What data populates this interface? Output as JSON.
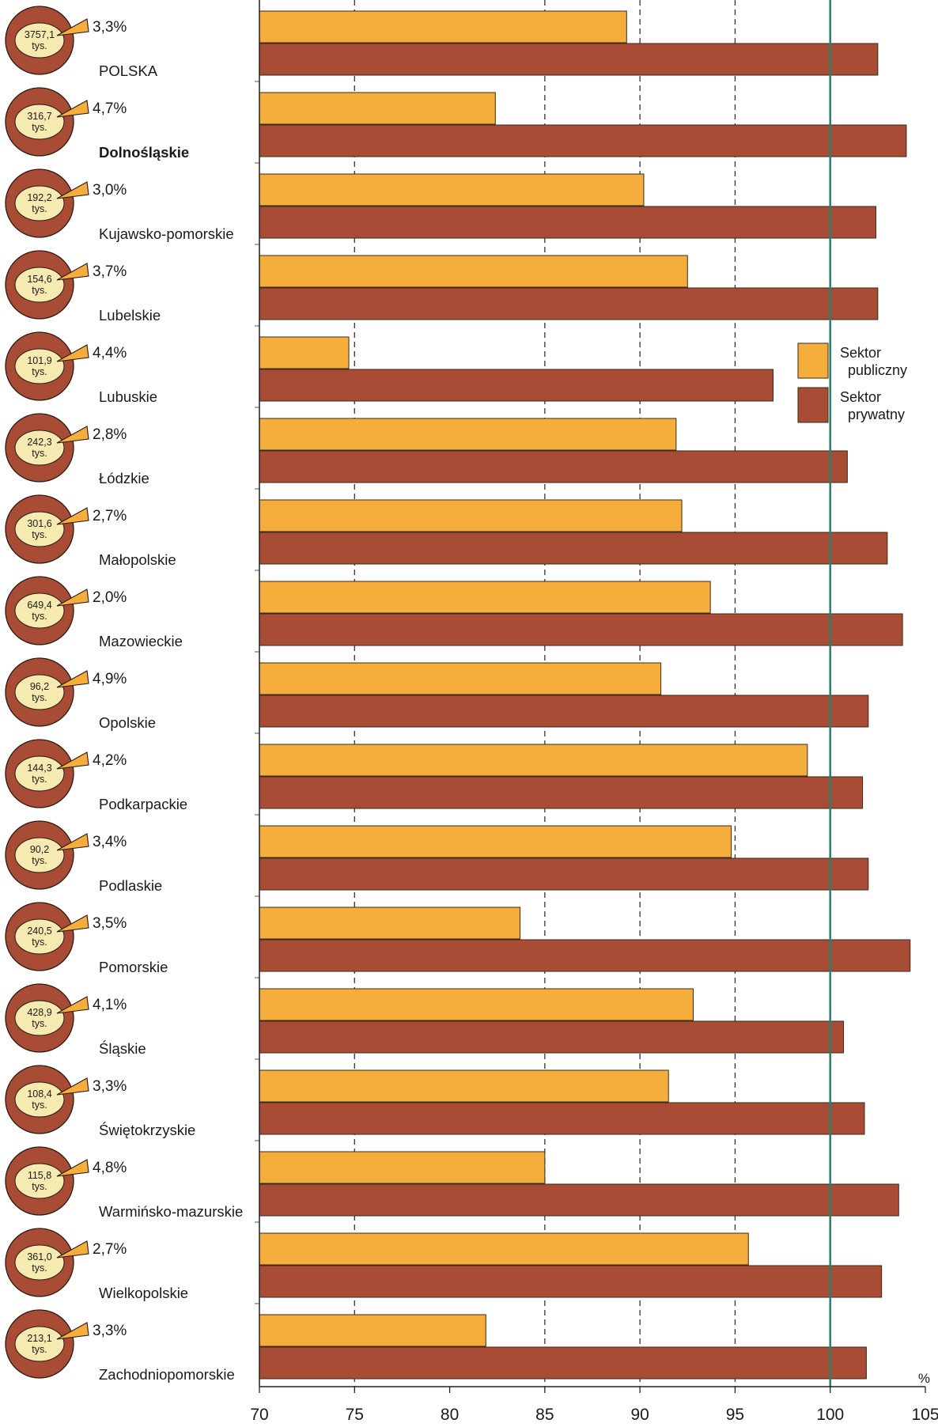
{
  "chart_data": {
    "type": "bar",
    "orientation": "horizontal",
    "xlim": [
      70,
      105
    ],
    "x_ticks": [
      "70",
      "75",
      "80",
      "85",
      "90",
      "95",
      "100",
      "105"
    ],
    "unit_label": "%",
    "reference_line": 100,
    "gridlines": "dashed vertical at 75, 85, 90, 95",
    "legend_position": "right",
    "colors": {
      "public": "#f5ae3c",
      "private": "#a84c35",
      "reference_line": "#2e7d6b",
      "pie_outer": "#a84c35",
      "pie_inner": "#f5ebb0"
    },
    "series": [
      {
        "name": "Sektor publiczny",
        "legend_lines": [
          "Sektor",
          "publiczny"
        ]
      },
      {
        "name": "Sektor prywatny",
        "legend_lines": [
          "Sektor",
          "prywatny"
        ]
      }
    ],
    "categories": [
      {
        "name": "POLSKA",
        "bold": false,
        "pie_value": "3757,1",
        "pie_unit": "tys.",
        "share_label": "3,3%",
        "public": 89.3,
        "private": 102.5
      },
      {
        "name": "Dolnośląskie",
        "bold": true,
        "pie_value": "316,7",
        "pie_unit": "tys.",
        "share_label": "4,7%",
        "public": 82.4,
        "private": 104.0
      },
      {
        "name": "Kujawsko-pomorskie",
        "bold": false,
        "pie_value": "192,2",
        "pie_unit": "tys.",
        "share_label": "3,0%",
        "public": 90.2,
        "private": 102.4
      },
      {
        "name": "Lubelskie",
        "bold": false,
        "pie_value": "154,6",
        "pie_unit": "tys.",
        "share_label": "3,7%",
        "public": 92.5,
        "private": 102.5
      },
      {
        "name": "Lubuskie",
        "bold": false,
        "pie_value": "101,9",
        "pie_unit": "tys.",
        "share_label": "4,4%",
        "public": 74.7,
        "private": 97.0
      },
      {
        "name": "Łódzkie",
        "bold": false,
        "pie_value": "242,3",
        "pie_unit": "tys.",
        "share_label": "2,8%",
        "public": 91.9,
        "private": 100.9
      },
      {
        "name": "Małopolskie",
        "bold": false,
        "pie_value": "301,6",
        "pie_unit": "tys.",
        "share_label": "2,7%",
        "public": 92.2,
        "private": 103.0
      },
      {
        "name": "Mazowieckie",
        "bold": false,
        "pie_value": "649,4",
        "pie_unit": "tys.",
        "share_label": "2,0%",
        "public": 93.7,
        "private": 103.8
      },
      {
        "name": "Opolskie",
        "bold": false,
        "pie_value": "96,2",
        "pie_unit": "tys.",
        "share_label": "4,9%",
        "public": 91.1,
        "private": 102.0
      },
      {
        "name": "Podkarpackie",
        "bold": false,
        "pie_value": "144,3",
        "pie_unit": "tys.",
        "share_label": "4,2%",
        "public": 98.8,
        "private": 101.7
      },
      {
        "name": "Podlaskie",
        "bold": false,
        "pie_value": "90,2",
        "pie_unit": "tys.",
        "share_label": "3,4%",
        "public": 94.8,
        "private": 102.0
      },
      {
        "name": "Pomorskie",
        "bold": false,
        "pie_value": "240,5",
        "pie_unit": "tys.",
        "share_label": "3,5%",
        "public": 83.7,
        "private": 104.2
      },
      {
        "name": "Śląskie",
        "bold": false,
        "pie_value": "428,9",
        "pie_unit": "tys.",
        "share_label": "4,1%",
        "public": 92.8,
        "private": 100.7
      },
      {
        "name": "Świętokrzyskie",
        "bold": false,
        "pie_value": "108,4",
        "pie_unit": "tys.",
        "share_label": "3,3%",
        "public": 91.5,
        "private": 101.8
      },
      {
        "name": "Warmińsko-mazurskie",
        "bold": false,
        "pie_value": "115,8",
        "pie_unit": "tys.",
        "share_label": "4,8%",
        "public": 85.0,
        "private": 103.6
      },
      {
        "name": "Wielkopolskie",
        "bold": false,
        "pie_value": "361,0",
        "pie_unit": "tys.",
        "share_label": "2,7%",
        "public": 95.7,
        "private": 102.7
      },
      {
        "name": "Zachodniopomorskie",
        "bold": false,
        "pie_value": "213,1",
        "pie_unit": "tys.",
        "share_label": "3,3%",
        "public": 81.9,
        "private": 101.9
      }
    ]
  }
}
